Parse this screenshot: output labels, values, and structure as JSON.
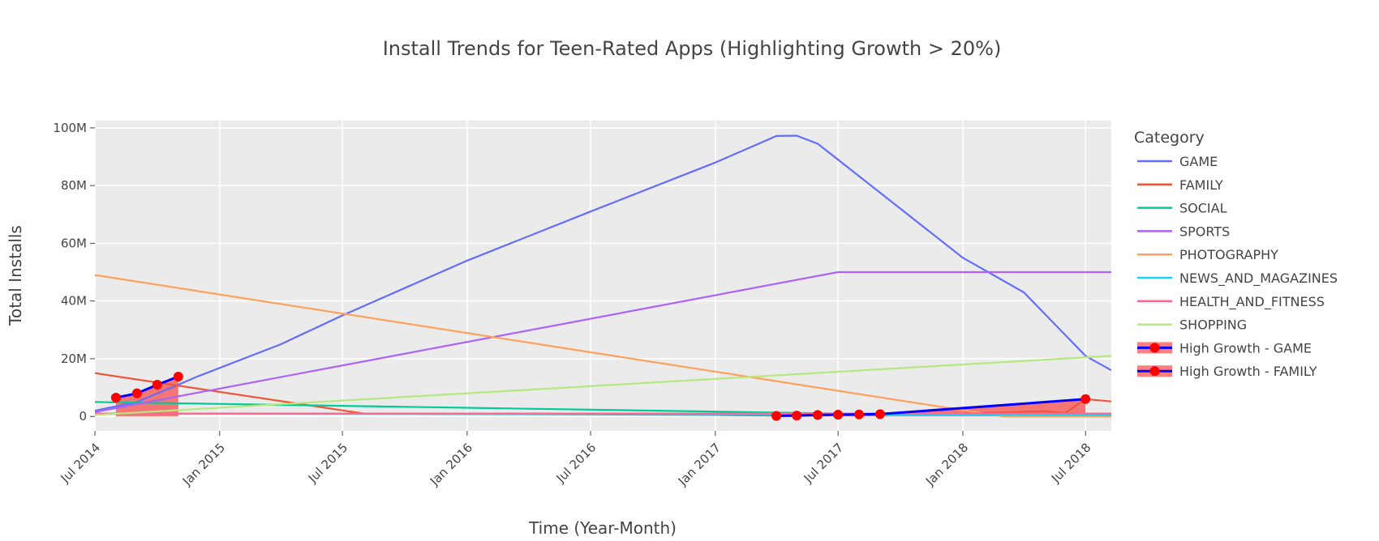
{
  "chart_data": {
    "type": "line",
    "title": "Install Trends for Teen-Rated Apps (Highlighting Growth > 20%)",
    "xlabel": "Time (Year-Month)",
    "ylabel": "Total Installs",
    "xlim": [
      "2014-07-01",
      "2018-08-08"
    ],
    "ylim": [
      -5000000,
      102500000
    ],
    "x_ticks": [
      {
        "date": "2014-07-01",
        "label": "Jul 2014"
      },
      {
        "date": "2015-01-01",
        "label": "Jan 2015"
      },
      {
        "date": "2015-07-01",
        "label": "Jul 2015"
      },
      {
        "date": "2016-01-01",
        "label": "Jan 2016"
      },
      {
        "date": "2016-07-01",
        "label": "Jul 2016"
      },
      {
        "date": "2017-01-01",
        "label": "Jan 2017"
      },
      {
        "date": "2017-07-01",
        "label": "Jul 2017"
      },
      {
        "date": "2018-01-01",
        "label": "Jan 2018"
      },
      {
        "date": "2018-07-01",
        "label": "Jul 2018"
      }
    ],
    "y_ticks": [
      {
        "value": 0,
        "label": "0"
      },
      {
        "value": 20000000,
        "label": "20M"
      },
      {
        "value": 40000000,
        "label": "40M"
      },
      {
        "value": 60000000,
        "label": "60M"
      },
      {
        "value": 80000000,
        "label": "80M"
      },
      {
        "value": 100000000,
        "label": "100M"
      }
    ],
    "grid": true,
    "legend": {
      "title": "Category",
      "position": "right"
    },
    "series": [
      {
        "name": "GAME",
        "color": "#636efa",
        "points": [
          [
            "2014-07-01",
            2000000
          ],
          [
            "2014-09-01",
            5000000
          ],
          [
            "2014-10-01",
            8000000
          ],
          [
            "2014-11-01",
            11000000
          ],
          [
            "2014-12-01",
            14000000
          ],
          [
            "2015-04-01",
            25000000
          ],
          [
            "2015-07-01",
            35000000
          ],
          [
            "2016-01-01",
            54000000
          ],
          [
            "2016-07-01",
            71000000
          ],
          [
            "2017-01-01",
            88000000
          ],
          [
            "2017-03-01",
            94000000
          ],
          [
            "2017-04-01",
            97200000
          ],
          [
            "2017-05-01",
            97300000
          ],
          [
            "2017-06-01",
            94500000
          ],
          [
            "2017-07-01",
            89000000
          ],
          [
            "2018-01-01",
            55000000
          ],
          [
            "2018-04-01",
            43000000
          ],
          [
            "2018-07-01",
            21000000
          ],
          [
            "2018-08-08",
            16000000
          ]
        ]
      },
      {
        "name": "FAMILY",
        "color": "#ef553b",
        "points": [
          [
            "2014-07-01",
            15000000
          ],
          [
            "2015-08-01",
            1000000
          ],
          [
            "2017-01-01",
            500000
          ],
          [
            "2017-05-01",
            200000
          ],
          [
            "2017-07-01",
            500000
          ],
          [
            "2018-01-01",
            1000000
          ],
          [
            "2018-05-01",
            1800000
          ],
          [
            "2018-06-01",
            1200000
          ],
          [
            "2018-07-01",
            6000000
          ],
          [
            "2018-08-08",
            5200000
          ]
        ]
      },
      {
        "name": "SOCIAL",
        "color": "#00cc96",
        "points": [
          [
            "2014-07-01",
            5000000
          ],
          [
            "2016-01-01",
            3000000
          ],
          [
            "2017-07-01",
            1000000
          ],
          [
            "2018-08-08",
            200000
          ]
        ]
      },
      {
        "name": "SPORTS",
        "color": "#ab63fa",
        "points": [
          [
            "2014-07-01",
            1500000
          ],
          [
            "2017-07-01",
            50000000
          ],
          [
            "2018-08-08",
            50000000
          ]
        ]
      },
      {
        "name": "PHOTOGRAPHY",
        "color": "#ffa15a",
        "points": [
          [
            "2014-07-01",
            49000000
          ],
          [
            "2018-03-01",
            0
          ],
          [
            "2018-08-08",
            0
          ]
        ]
      },
      {
        "name": "NEWS_AND_MAGAZINES",
        "color": "#19d3f3",
        "points": [
          [
            "2014-07-01",
            1000000
          ],
          [
            "2018-08-08",
            500000
          ]
        ]
      },
      {
        "name": "HEALTH_AND_FITNESS",
        "color": "#ff6692",
        "points": [
          [
            "2014-07-01",
            1000000
          ],
          [
            "2018-08-08",
            1000000
          ]
        ]
      },
      {
        "name": "SHOPPING",
        "color": "#b6e880",
        "points": [
          [
            "2014-07-01",
            500000
          ],
          [
            "2018-08-08",
            21000000
          ]
        ]
      }
    ],
    "highlight_series": [
      {
        "name": "High Growth - GAME",
        "line_color": "#0000ff",
        "marker_color": "#ff0000",
        "fill_color": "#ff0000",
        "points": [
          [
            "2014-08-01",
            6500000
          ],
          [
            "2014-09-01",
            8000000
          ],
          [
            "2014-10-01",
            11000000
          ],
          [
            "2014-11-01",
            13800000
          ]
        ]
      },
      {
        "name": "High Growth - FAMILY",
        "line_color": "#0000ff",
        "marker_color": "#ff0000",
        "fill_color": "#ff0000",
        "points": [
          [
            "2017-04-01",
            200000
          ],
          [
            "2017-05-01",
            300000
          ],
          [
            "2017-06-01",
            500000
          ],
          [
            "2017-07-01",
            600000
          ],
          [
            "2017-08-01",
            700000
          ],
          [
            "2017-09-01",
            800000
          ],
          [
            "2018-07-01",
            6000000
          ]
        ]
      }
    ]
  }
}
